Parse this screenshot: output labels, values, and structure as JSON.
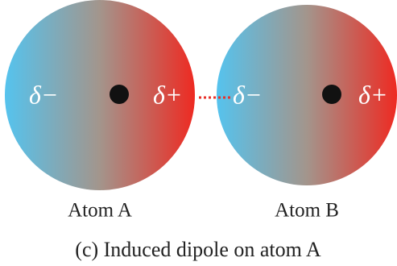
{
  "atoms": [
    {
      "left_charge": "δ−",
      "right_charge": "δ+",
      "label": "Atom A"
    },
    {
      "left_charge": "δ−",
      "right_charge": "δ+",
      "label": "Atom B"
    }
  ],
  "caption": "(c) Induced dipole on atom A"
}
